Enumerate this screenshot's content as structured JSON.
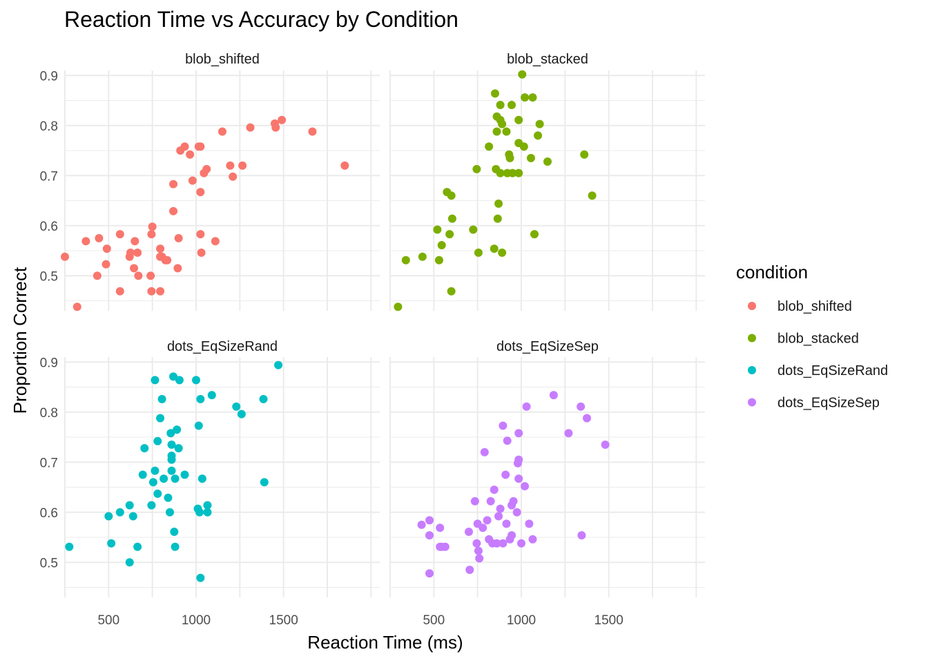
{
  "chart_data": {
    "type": "scatter",
    "title": "Reaction Time vs Accuracy by Condition",
    "xlabel": "Reaction Time (ms)",
    "ylabel": "Proportion Correct",
    "xlim": [
      250,
      2050
    ],
    "ylim": [
      0.43,
      0.91
    ],
    "xticks": [
      500,
      1000,
      1500
    ],
    "yticks": [
      0.5,
      0.6,
      0.7,
      0.8,
      0.9
    ],
    "legend_title": "condition",
    "legend_position": "right",
    "grid": true,
    "panels": [
      {
        "name": "blob_shifted",
        "color": "#F8766D",
        "points": [
          [
            250,
            0.538
          ],
          [
            320,
            0.438
          ],
          [
            370,
            0.569
          ],
          [
            445,
            0.575
          ],
          [
            435,
            0.5
          ],
          [
            490,
            0.554
          ],
          [
            485,
            0.523
          ],
          [
            565,
            0.583
          ],
          [
            565,
            0.469
          ],
          [
            620,
            0.538
          ],
          [
            625,
            0.546
          ],
          [
            645,
            0.515
          ],
          [
            650,
            0.569
          ],
          [
            665,
            0.546
          ],
          [
            670,
            0.5
          ],
          [
            740,
            0.5
          ],
          [
            745,
            0.583
          ],
          [
            745,
            0.469
          ],
          [
            750,
            0.598
          ],
          [
            795,
            0.469
          ],
          [
            795,
            0.554
          ],
          [
            795,
            0.538
          ],
          [
            805,
            0.538
          ],
          [
            825,
            0.531
          ],
          [
            835,
            0.531
          ],
          [
            870,
            0.683
          ],
          [
            870,
            0.629
          ],
          [
            895,
            0.515
          ],
          [
            900,
            0.575
          ],
          [
            910,
            0.75
          ],
          [
            935,
            0.758
          ],
          [
            965,
            0.742
          ],
          [
            980,
            0.69
          ],
          [
            1015,
            0.758
          ],
          [
            1025,
            0.758
          ],
          [
            1025,
            0.667
          ],
          [
            1025,
            0.583
          ],
          [
            1030,
            0.546
          ],
          [
            1045,
            0.705
          ],
          [
            1060,
            0.713
          ],
          [
            1110,
            0.569
          ],
          [
            1150,
            0.788
          ],
          [
            1195,
            0.72
          ],
          [
            1210,
            0.698
          ],
          [
            1265,
            0.72
          ],
          [
            1310,
            0.796
          ],
          [
            1450,
            0.804
          ],
          [
            1455,
            0.796
          ],
          [
            1490,
            0.811
          ],
          [
            1665,
            0.788
          ],
          [
            1850,
            0.72
          ]
        ]
      },
      {
        "name": "blob_stacked",
        "color": "#7CAE00",
        "points": [
          [
            295,
            0.438
          ],
          [
            340,
            0.531
          ],
          [
            435,
            0.538
          ],
          [
            520,
            0.592
          ],
          [
            530,
            0.531
          ],
          [
            545,
            0.561
          ],
          [
            575,
            0.667
          ],
          [
            590,
            0.583
          ],
          [
            600,
            0.469
          ],
          [
            600,
            0.66
          ],
          [
            605,
            0.614
          ],
          [
            725,
            0.592
          ],
          [
            745,
            0.713
          ],
          [
            755,
            0.546
          ],
          [
            815,
            0.758
          ],
          [
            845,
            0.554
          ],
          [
            850,
            0.864
          ],
          [
            855,
            0.713
          ],
          [
            860,
            0.788
          ],
          [
            860,
            0.818
          ],
          [
            865,
            0.614
          ],
          [
            870,
            0.644
          ],
          [
            880,
            0.841
          ],
          [
            880,
            0.705
          ],
          [
            880,
            0.811
          ],
          [
            890,
            0.546
          ],
          [
            890,
            0.803
          ],
          [
            915,
            0.788
          ],
          [
            920,
            0.705
          ],
          [
            930,
            0.742
          ],
          [
            935,
            0.735
          ],
          [
            945,
            0.841
          ],
          [
            950,
            0.705
          ],
          [
            985,
            0.705
          ],
          [
            985,
            0.765
          ],
          [
            985,
            0.811
          ],
          [
            1005,
            0.902
          ],
          [
            1015,
            0.758
          ],
          [
            1020,
            0.856
          ],
          [
            1055,
            0.735
          ],
          [
            1065,
            0.856
          ],
          [
            1075,
            0.583
          ],
          [
            1095,
            0.78
          ],
          [
            1105,
            0.803
          ],
          [
            1150,
            0.728
          ],
          [
            1360,
            0.742
          ],
          [
            1405,
            0.66
          ]
        ]
      },
      {
        "name": "dots_EqSizeRand",
        "color": "#00BFC4",
        "points": [
          [
            275,
            0.531
          ],
          [
            500,
            0.592
          ],
          [
            515,
            0.538
          ],
          [
            565,
            0.6
          ],
          [
            620,
            0.614
          ],
          [
            620,
            0.5
          ],
          [
            640,
            0.592
          ],
          [
            665,
            0.531
          ],
          [
            695,
            0.675
          ],
          [
            705,
            0.728
          ],
          [
            745,
            0.614
          ],
          [
            755,
            0.66
          ],
          [
            765,
            0.864
          ],
          [
            765,
            0.683
          ],
          [
            780,
            0.742
          ],
          [
            780,
            0.637
          ],
          [
            795,
            0.788
          ],
          [
            805,
            0.826
          ],
          [
            815,
            0.667
          ],
          [
            840,
            0.629
          ],
          [
            850,
            0.6
          ],
          [
            855,
            0.758
          ],
          [
            860,
            0.735
          ],
          [
            860,
            0.705
          ],
          [
            860,
            0.683
          ],
          [
            860,
            0.713
          ],
          [
            870,
            0.871
          ],
          [
            875,
            0.561
          ],
          [
            880,
            0.531
          ],
          [
            880,
            0.667
          ],
          [
            890,
            0.765
          ],
          [
            900,
            0.728
          ],
          [
            905,
            0.864
          ],
          [
            935,
            0.675
          ],
          [
            1000,
            0.864
          ],
          [
            1010,
            0.607
          ],
          [
            1015,
            0.773
          ],
          [
            1020,
            0.6
          ],
          [
            1025,
            0.826
          ],
          [
            1025,
            0.469
          ],
          [
            1035,
            0.667
          ],
          [
            1065,
            0.614
          ],
          [
            1065,
            0.6
          ],
          [
            1090,
            0.834
          ],
          [
            1230,
            0.811
          ],
          [
            1260,
            0.796
          ],
          [
            1385,
            0.826
          ],
          [
            1390,
            0.66
          ],
          [
            1470,
            0.894
          ]
        ]
      },
      {
        "name": "dots_EqSizeSep",
        "color": "#C77CFF",
        "points": [
          [
            430,
            0.575
          ],
          [
            475,
            0.554
          ],
          [
            475,
            0.584
          ],
          [
            475,
            0.478
          ],
          [
            535,
            0.569
          ],
          [
            535,
            0.531
          ],
          [
            545,
            0.531
          ],
          [
            565,
            0.531
          ],
          [
            700,
            0.561
          ],
          [
            705,
            0.485
          ],
          [
            735,
            0.622
          ],
          [
            745,
            0.538
          ],
          [
            750,
            0.577
          ],
          [
            755,
            0.523
          ],
          [
            760,
            0.508
          ],
          [
            780,
            0.569
          ],
          [
            790,
            0.72
          ],
          [
            805,
            0.584
          ],
          [
            815,
            0.546
          ],
          [
            825,
            0.622
          ],
          [
            835,
            0.538
          ],
          [
            845,
            0.645
          ],
          [
            860,
            0.538
          ],
          [
            870,
            0.592
          ],
          [
            880,
            0.607
          ],
          [
            895,
            0.538
          ],
          [
            895,
            0.773
          ],
          [
            910,
            0.675
          ],
          [
            915,
            0.577
          ],
          [
            920,
            0.743
          ],
          [
            935,
            0.546
          ],
          [
            945,
            0.614
          ],
          [
            945,
            0.554
          ],
          [
            955,
            0.622
          ],
          [
            975,
            0.6
          ],
          [
            980,
            0.698
          ],
          [
            985,
            0.705
          ],
          [
            985,
            0.758
          ],
          [
            985,
            0.667
          ],
          [
            1000,
            0.538
          ],
          [
            1020,
            0.652
          ],
          [
            1030,
            0.811
          ],
          [
            1045,
            0.577
          ],
          [
            1065,
            0.546
          ],
          [
            1185,
            0.834
          ],
          [
            1270,
            0.758
          ],
          [
            1340,
            0.811
          ],
          [
            1345,
            0.554
          ],
          [
            1375,
            0.788
          ],
          [
            1480,
            0.735
          ]
        ]
      }
    ]
  }
}
